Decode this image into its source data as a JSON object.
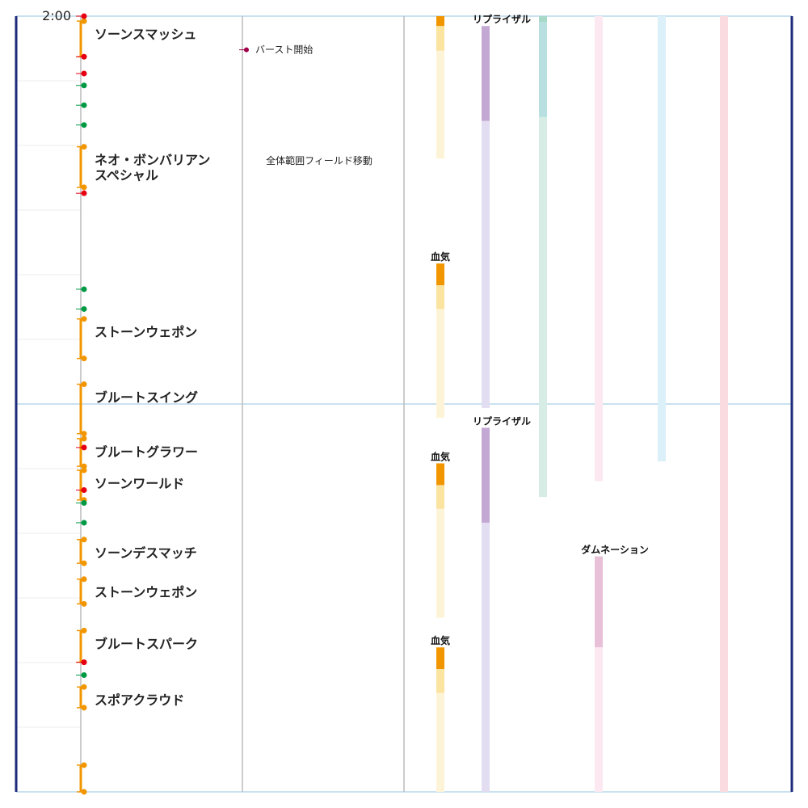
{
  "timeline": {
    "start_time": "2:00",
    "skills": [
      {
        "label": "ソーンスマッシュ",
        "start": 0.25,
        "end": 2.05
      },
      {
        "label": "ネオ・ボンバリアン\nスペシャル",
        "start": 6.6,
        "end": 8.65
      },
      {
        "label": "ストーンウェポン",
        "start": 15.3,
        "end": 17.3
      },
      {
        "label": "ブルートスイング",
        "start": 18.6,
        "end": 21.1
      },
      {
        "label": "ブルートグラワー",
        "start": 21.35,
        "end": 22.75
      },
      {
        "label": "ソーンワールド",
        "start": 22.95,
        "end": 24.45
      },
      {
        "label": "ソーンデスマッチ",
        "start": 26.45,
        "end": 27.65
      },
      {
        "label": "ストーンウェポン",
        "start": 28.45,
        "end": 29.7
      },
      {
        "label": "ブルートスパーク",
        "start": 31.05,
        "end": 32.65
      },
      {
        "label": "スポアクラウド",
        "start": 33.9,
        "end": 34.95
      },
      {
        "label": "",
        "start": 37.85,
        "end": 39.2
      }
    ],
    "red_markers": [
      0,
      2.05,
      2.9,
      8.95,
      21.8,
      23.95,
      32.65
    ],
    "green_markers": [
      3.5,
      4.5,
      5.5,
      13.8,
      14.8,
      24.6,
      25.6,
      33.3
    ],
    "notes": [
      {
        "label": "バースト開始",
        "time": 1.7,
        "column": 1,
        "dot": true
      },
      {
        "label": "全体範囲フィールド移動",
        "time": 7.3,
        "column": 1,
        "dot": false
      }
    ],
    "buffs": [
      {
        "name": "",
        "label_display": "",
        "start": 0,
        "active": 0.5,
        "mid": 1.75,
        "end": 7.2,
        "color_active": "#f29600",
        "color_mid": "#fbe3a0",
        "color_light": "#fdf4d8",
        "lane": 0
      },
      {
        "name": "血気",
        "label_display": "血気",
        "start": 12.5,
        "active": 13.6,
        "mid": 14.8,
        "end": 20.3,
        "color_active": "#f29600",
        "color_mid": "#fbe3a0",
        "color_light": "#fdf4d8",
        "lane": 0
      },
      {
        "name": "血気",
        "label_display": "血気",
        "start": 22.6,
        "active": 23.7,
        "mid": 24.9,
        "end": 30.4,
        "color_active": "#f29600",
        "color_mid": "#fbe3a0",
        "color_light": "#fdf4d8",
        "lane": 0
      },
      {
        "name": "血気",
        "label_display": "血気",
        "start": 31.9,
        "active": 33.0,
        "mid": 34.2,
        "end": 39.2,
        "color_active": "#f29600",
        "color_mid": "#fbe3a0",
        "color_light": "#fdf4d8",
        "lane": 0
      },
      {
        "name": "リプライザル",
        "label_display": "リプライザル",
        "start": 0.5,
        "active": 5.3,
        "mid": 5.3,
        "end": 19.8,
        "color_active": "#c4a8d4",
        "color_mid": "#c4a8d4",
        "color_light": "#e2ddf0",
        "lane": 1
      },
      {
        "name": "リプライザル",
        "label_display": "リプライザル",
        "start": 20.8,
        "active": 25.6,
        "mid": 25.6,
        "end": 39.2,
        "color_active": "#c4a8d4",
        "color_mid": "#c4a8d4",
        "color_light": "#e2ddf0",
        "lane": 1
      },
      {
        "name": "",
        "label_display": "",
        "start": 0,
        "active": 0.3,
        "mid": 5.1,
        "end": 24.3,
        "color_active": "#a8d8c8",
        "color_mid": "#b8e0e0",
        "color_light": "#d6ece4",
        "lane": 2
      },
      {
        "name": "",
        "label_display": "",
        "start": 0,
        "active": 0,
        "mid": 0,
        "end": 23.5,
        "color_active": "#fce8f0",
        "color_mid": "#fce8f0",
        "color_light": "#fce8f0",
        "lane": 3
      },
      {
        "name": "ダムネーション",
        "label_display": "ダムネーション",
        "start": 27.3,
        "active": 27.3,
        "mid": 31.9,
        "end": 39.2,
        "color_active": "#e8c0d8",
        "color_mid": "#e8c0d8",
        "color_light": "#fce8f0",
        "lane": 3
      },
      {
        "name": "",
        "label_display": "",
        "start": 0,
        "active": 0,
        "mid": 0,
        "end": 22.5,
        "color_active": "#dcf0fa",
        "color_mid": "#dcf0fa",
        "color_light": "#dcf0fa",
        "lane": 4
      },
      {
        "name": "",
        "label_display": "",
        "start": 0,
        "active": 0,
        "mid": 0,
        "end": 39.2,
        "color_active": "#fadce0",
        "color_mid": "#fadce0",
        "color_light": "#fadce0",
        "lane": 5
      }
    ],
    "colors": {
      "frame": "#1e2a7a",
      "skill_bar": "#f29600",
      "red": "#e60012",
      "green": "#009944",
      "note_dot": "#a0004a",
      "grid_major": "#b8d8ec",
      "grid_minor": "#eeeeee",
      "column_line": "#bbbbbb"
    }
  }
}
